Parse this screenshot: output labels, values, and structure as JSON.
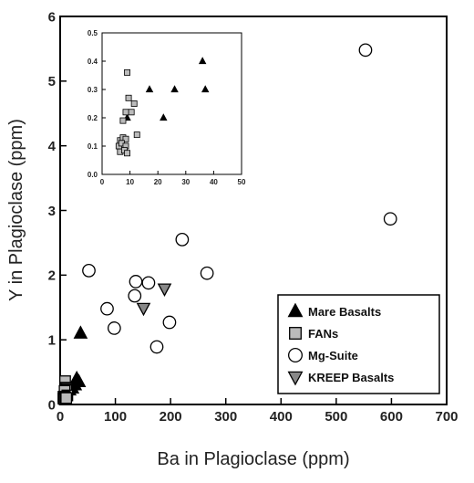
{
  "chart_data": [
    {
      "type": "scatter",
      "xlabel": "Ba in Plagioclase (ppm)",
      "ylabel": "Y in Plagioclase (ppm)",
      "xlim": [
        0,
        700
      ],
      "ylim": [
        0,
        6
      ],
      "x_ticks": [
        "0",
        "100",
        "200",
        "300",
        "400",
        "500",
        "600",
        "700"
      ],
      "y_ticks": [
        "0",
        "1",
        "2",
        "3",
        "4",
        "5",
        "6"
      ],
      "grid": false,
      "legend_placement": "bottom-right",
      "series": [
        {
          "name": "Mare Basalts",
          "marker": "triangle-up",
          "color": "#000000",
          "points": [
            [
              37,
              1.1
            ],
            [
              30,
              0.4
            ],
            [
              34,
              0.35
            ],
            [
              27,
              0.3
            ],
            [
              22,
              0.25
            ],
            [
              17,
              0.22
            ]
          ]
        },
        {
          "name": "FANs",
          "marker": "square",
          "color": "#bbbbbb",
          "points": [
            [
              9,
              0.36
            ],
            [
              10,
              0.26
            ],
            [
              12,
              0.24
            ],
            [
              11,
              0.22
            ],
            [
              8,
              0.21
            ],
            [
              13,
              0.14
            ],
            [
              6,
              0.12
            ],
            [
              7,
              0.11
            ],
            [
              8,
              0.12
            ],
            [
              9,
              0.11
            ],
            [
              6,
              0.09
            ],
            [
              8,
              0.08
            ],
            [
              10,
              0.09
            ],
            [
              11,
              0.1
            ]
          ]
        },
        {
          "name": "Mg-Suite",
          "marker": "circle-open",
          "color": "#ffffff",
          "points": [
            [
              553,
              5.48
            ],
            [
              598,
              2.87
            ],
            [
              221,
              2.55
            ],
            [
              52,
              2.07
            ],
            [
              266,
              2.03
            ],
            [
              137,
              1.9
            ],
            [
              160,
              1.88
            ],
            [
              85,
              1.48
            ],
            [
              135,
              1.68
            ],
            [
              98,
              1.18
            ],
            [
              198,
              1.27
            ],
            [
              175,
              0.89
            ]
          ]
        },
        {
          "name": "KREEP Basalts",
          "marker": "triangle-down",
          "color": "#888888",
          "points": [
            [
              189,
              1.79
            ],
            [
              151,
              1.49
            ]
          ]
        }
      ]
    },
    {
      "type": "scatter",
      "role": "inset",
      "xlim": [
        0,
        50
      ],
      "ylim": [
        0,
        0.5
      ],
      "x_ticks": [
        "0",
        "10",
        "20",
        "30",
        "40",
        "50"
      ],
      "y_ticks": [
        "0.0",
        "0.1",
        "0.2",
        "0.3",
        "0.4",
        "0.5"
      ],
      "series": [
        {
          "name": "Mare Basalts",
          "marker": "triangle-up",
          "color": "#000000",
          "points": [
            [
              36,
              0.4
            ],
            [
              37,
              0.3
            ],
            [
              26,
              0.3
            ],
            [
              17,
              0.3
            ],
            [
              22,
              0.2
            ],
            [
              9,
              0.2
            ]
          ]
        },
        {
          "name": "FANs",
          "marker": "square",
          "color": "#bbbbbb",
          "points": [
            [
              9,
              0.36
            ],
            [
              9.5,
              0.27
            ],
            [
              11.5,
              0.25
            ],
            [
              10.5,
              0.22
            ],
            [
              8.5,
              0.22
            ],
            [
              7.5,
              0.19
            ],
            [
              12.5,
              0.14
            ],
            [
              6.5,
              0.12
            ],
            [
              7.5,
              0.13
            ],
            [
              8.5,
              0.125
            ],
            [
              6,
              0.1
            ],
            [
              7,
              0.11
            ],
            [
              8.5,
              0.1
            ],
            [
              6.5,
              0.08
            ],
            [
              8,
              0.085
            ],
            [
              9,
              0.075
            ]
          ]
        }
      ]
    }
  ]
}
